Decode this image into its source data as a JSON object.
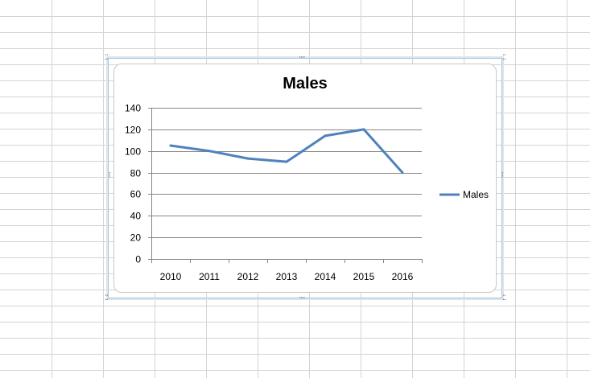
{
  "sheet": {
    "grid_color": "#d4d4d4"
  },
  "chart_data": {
    "type": "line",
    "title": "Males",
    "xlabel": "",
    "ylabel": "",
    "categories": [
      "2010",
      "2011",
      "2012",
      "2013",
      "2014",
      "2015",
      "2016"
    ],
    "series": [
      {
        "name": "Males",
        "values": [
          105,
          100,
          93,
          90,
          114,
          120,
          80
        ],
        "color": "#4f81bd"
      }
    ],
    "ylim": [
      0,
      140
    ],
    "yticks": [
      "0",
      "20",
      "40",
      "60",
      "80",
      "100",
      "120",
      "140"
    ],
    "grid": true,
    "legend": "right"
  }
}
